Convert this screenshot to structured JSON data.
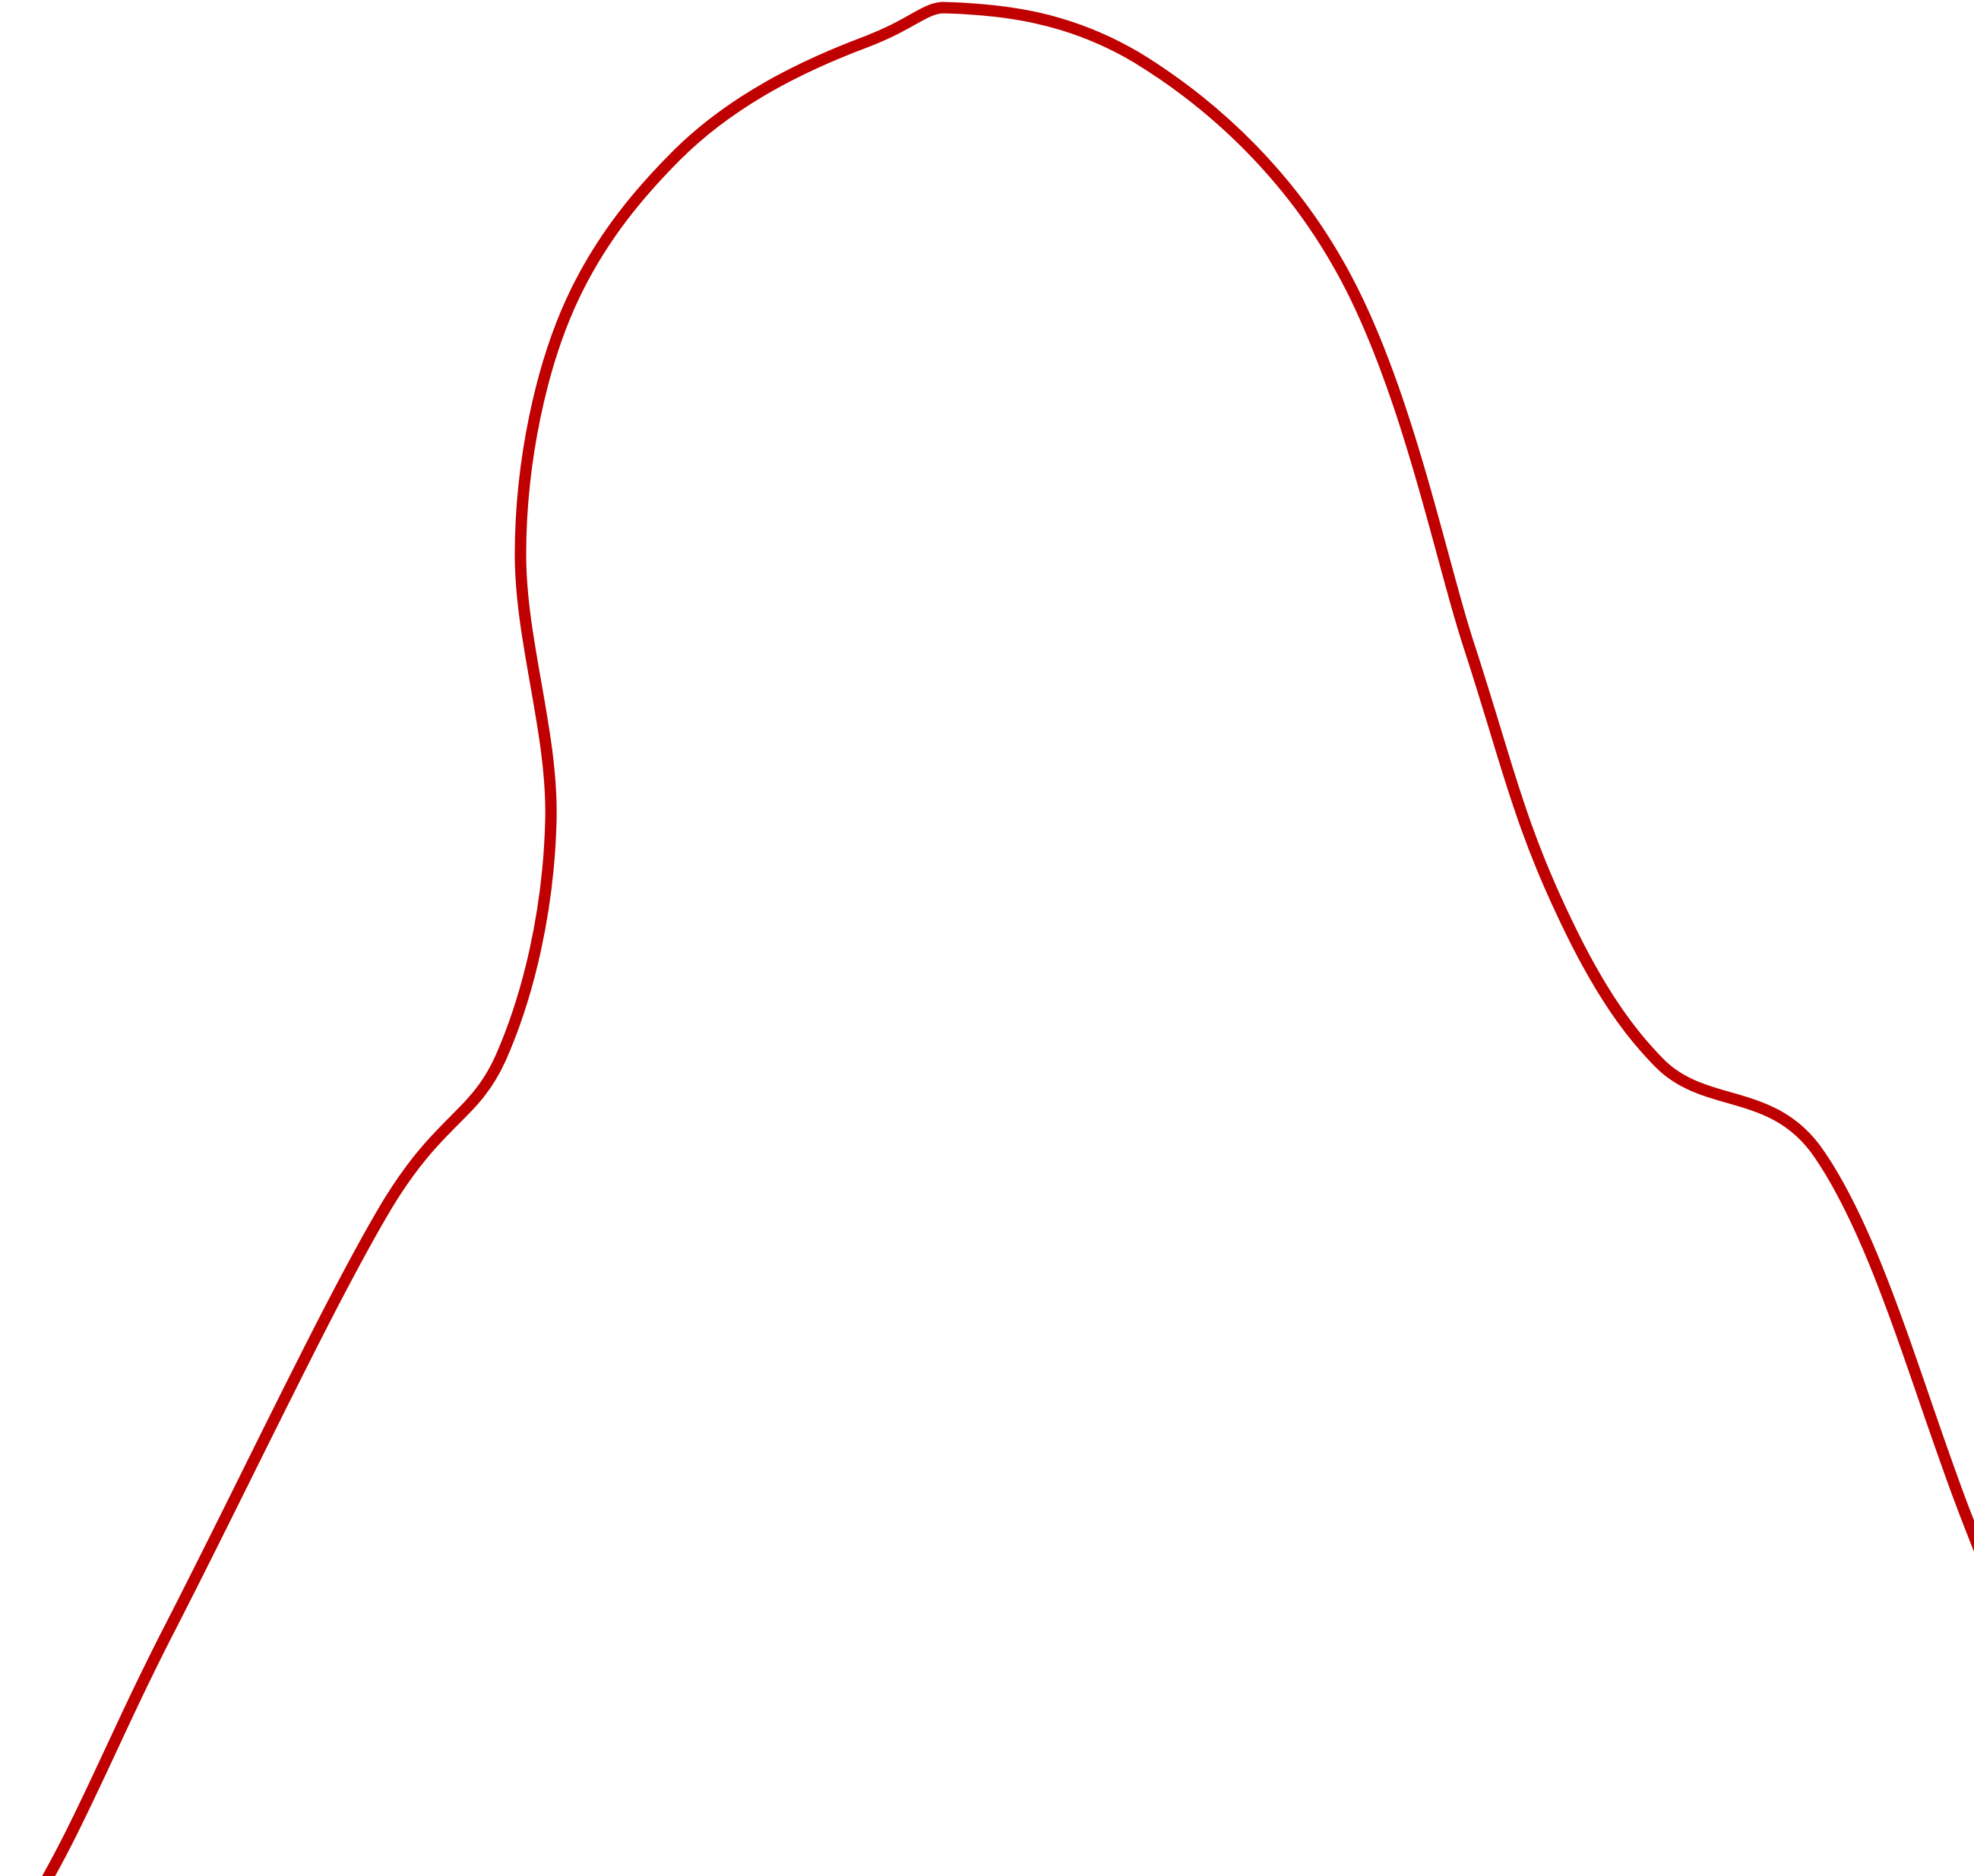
{
  "shape": {
    "kind": "closed-freeform-outline",
    "stroke_color": "#c00000",
    "fill_color": "#ffffff"
  }
}
